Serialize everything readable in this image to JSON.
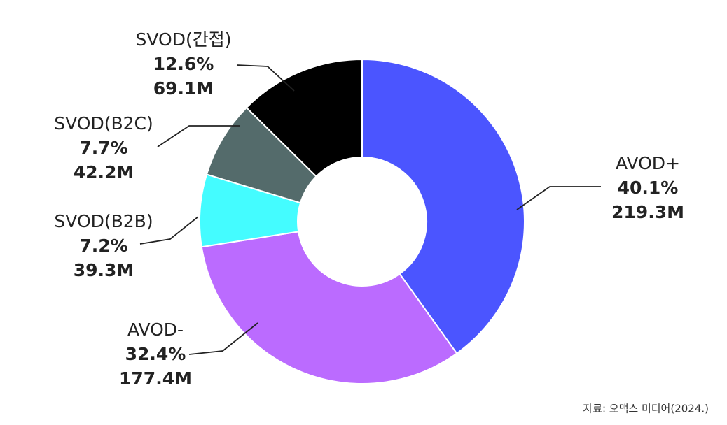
{
  "chart_data": {
    "type": "donut",
    "categories": [
      "AVOD+",
      "AVOD-",
      "SVOD(B2B)",
      "SVOD(B2C)",
      "SVOD(간접)"
    ],
    "values": [
      40.1,
      32.4,
      7.2,
      7.7,
      12.6
    ],
    "value_labels": [
      "40.1%",
      "32.4%",
      "7.2%",
      "7.7%",
      "12.6%"
    ],
    "amounts": [
      219.3,
      177.4,
      39.3,
      42.2,
      69.1
    ],
    "amount_labels": [
      "219.3M",
      "177.4M",
      "39.3M",
      "42.2M",
      "69.1M"
    ],
    "colors": [
      "#4b55ff",
      "#bb6bff",
      "#44fcff",
      "#546b6b",
      "#000000"
    ],
    "source": "자료: 오맥스 미디어(2024.)"
  }
}
